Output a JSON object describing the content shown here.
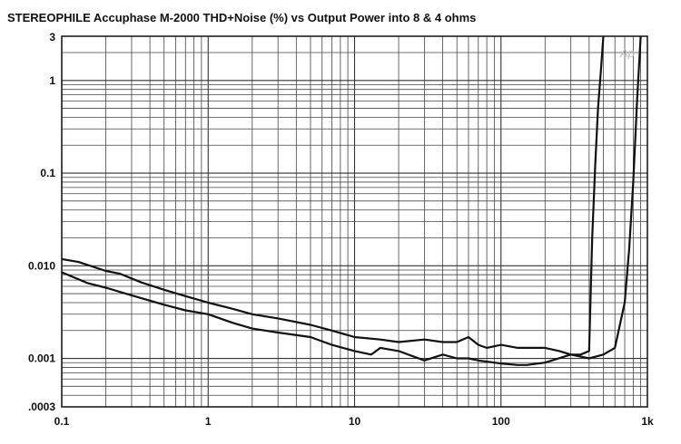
{
  "chart_data": {
    "type": "line",
    "title": "STEREOPHILE  Accuphase M-2000  THD+Noise (%) vs Output Power into 8 & 4 ohms",
    "xlabel": "",
    "ylabel": "",
    "x_scale": "log",
    "y_scale": "log",
    "xlim": [
      0.1,
      1000
    ],
    "ylim": [
      0.0003,
      3
    ],
    "x_ticks": [
      {
        "value": 0.1,
        "label": "0.1"
      },
      {
        "value": 1,
        "label": "1"
      },
      {
        "value": 10,
        "label": "10"
      },
      {
        "value": 100,
        "label": "100"
      },
      {
        "value": 1000,
        "label": "1k"
      }
    ],
    "y_ticks": [
      {
        "value": 3,
        "label": "3"
      },
      {
        "value": 1,
        "label": "1"
      },
      {
        "value": 0.1,
        "label": "0.1"
      },
      {
        "value": 0.01,
        "label": "0.010"
      },
      {
        "value": 0.001,
        "label": "0.001"
      },
      {
        "value": 0.0003,
        "label": ".0003"
      }
    ],
    "grid": true,
    "legend": "none",
    "watermark": "Ap",
    "series": [
      {
        "color": "#111111",
        "x": [
          0.1,
          0.13,
          0.2,
          0.25,
          0.35,
          0.5,
          0.7,
          1,
          1.5,
          2,
          3,
          5,
          7,
          10,
          15,
          20,
          30,
          40,
          50,
          60,
          70,
          80,
          100,
          130,
          150,
          200,
          250,
          300,
          350,
          400,
          420,
          440,
          460,
          480,
          500
        ],
        "y": [
          0.0118,
          0.011,
          0.0088,
          0.0082,
          0.0066,
          0.0055,
          0.0047,
          0.004,
          0.0034,
          0.003,
          0.0027,
          0.0023,
          0.002,
          0.0017,
          0.0016,
          0.0015,
          0.0016,
          0.0015,
          0.0015,
          0.0017,
          0.0014,
          0.0013,
          0.0014,
          0.0013,
          0.0013,
          0.0013,
          0.0012,
          0.0011,
          0.0011,
          0.0012,
          0.02,
          0.12,
          0.5,
          1.2,
          3
        ]
      },
      {
        "color": "#111111",
        "x": [
          0.1,
          0.15,
          0.2,
          0.3,
          0.5,
          0.7,
          1,
          1.5,
          2,
          3,
          5,
          7,
          10,
          13,
          15,
          20,
          30,
          40,
          50,
          60,
          70,
          100,
          130,
          150,
          200,
          300,
          400,
          500,
          600,
          700,
          750,
          800,
          850,
          900
        ],
        "y": [
          0.0085,
          0.0065,
          0.0058,
          0.0048,
          0.0038,
          0.0033,
          0.003,
          0.0024,
          0.0021,
          0.0019,
          0.0017,
          0.0014,
          0.0012,
          0.0011,
          0.0013,
          0.0012,
          0.00095,
          0.0011,
          0.001,
          0.001,
          0.00095,
          0.00088,
          0.00085,
          0.00085,
          0.0009,
          0.0011,
          0.001,
          0.0011,
          0.0013,
          0.004,
          0.015,
          0.08,
          0.6,
          3
        ]
      }
    ]
  }
}
